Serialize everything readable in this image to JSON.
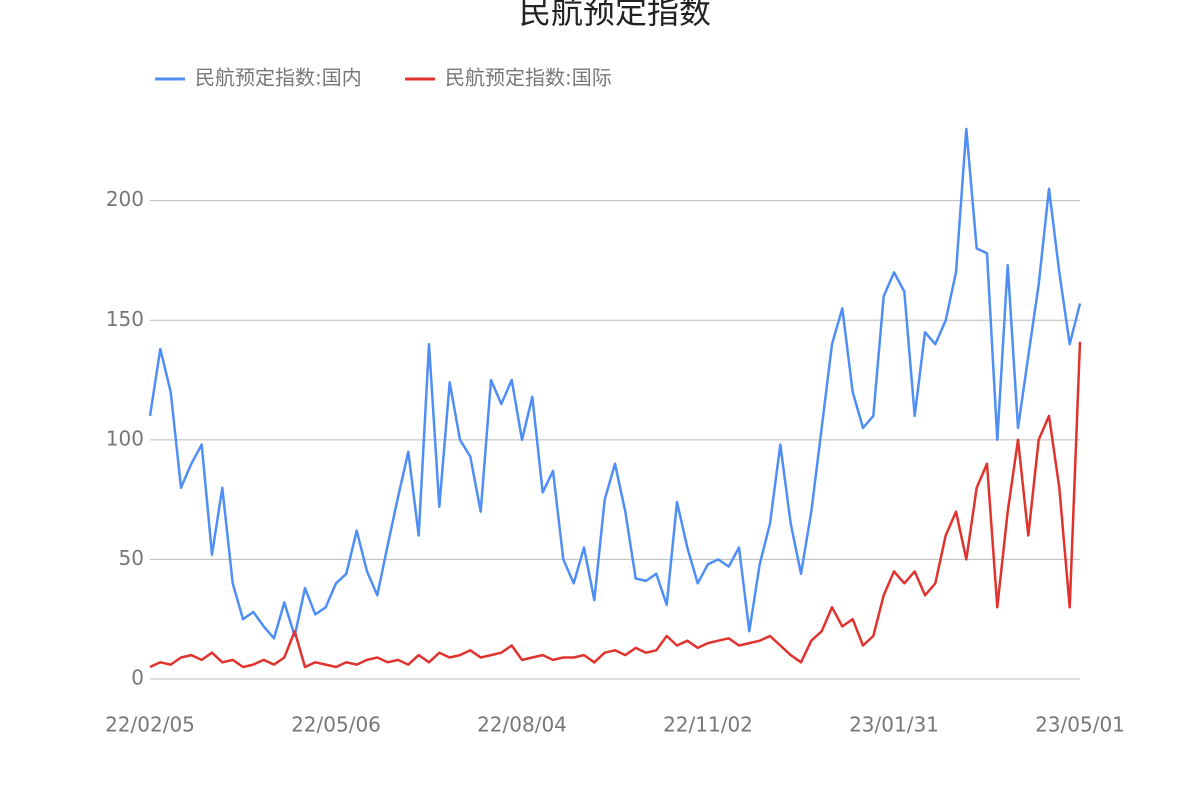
{
  "chart_data": {
    "type": "line",
    "title": "民航预定指数",
    "x": [
      "22/02/05",
      "22/02/10",
      "22/02/15",
      "22/02/20",
      "22/02/25",
      "22/03/02",
      "22/03/07",
      "22/03/12",
      "22/03/17",
      "22/03/22",
      "22/03/27",
      "22/04/01",
      "22/04/06",
      "22/04/11",
      "22/04/16",
      "22/04/21",
      "22/04/26",
      "22/05/01",
      "22/05/06",
      "22/05/11",
      "22/05/16",
      "22/05/21",
      "22/05/26",
      "22/05/31",
      "22/06/05",
      "22/06/10",
      "22/06/15",
      "22/06/20",
      "22/06/25",
      "22/06/30",
      "22/07/05",
      "22/07/10",
      "22/07/15",
      "22/07/20",
      "22/07/25",
      "22/07/30",
      "22/08/04",
      "22/08/09",
      "22/08/14",
      "22/08/19",
      "22/08/24",
      "22/08/29",
      "22/09/03",
      "22/09/08",
      "22/09/13",
      "22/09/18",
      "22/09/23",
      "22/09/28",
      "22/10/03",
      "22/10/08",
      "22/10/13",
      "22/10/18",
      "22/10/23",
      "22/10/28",
      "22/11/02",
      "22/11/07",
      "22/11/12",
      "22/11/17",
      "22/11/22",
      "22/11/27",
      "22/12/02",
      "22/12/07",
      "22/12/12",
      "22/12/17",
      "22/12/22",
      "22/12/27",
      "23/01/01",
      "23/01/06",
      "23/01/11",
      "23/01/16",
      "23/01/21",
      "23/01/26",
      "23/01/31",
      "23/02/05",
      "23/02/10",
      "23/02/15",
      "23/02/20",
      "23/02/25",
      "23/03/02",
      "23/03/07",
      "23/03/12",
      "23/03/17",
      "23/03/22",
      "23/03/27",
      "23/04/01",
      "23/04/06",
      "23/04/11",
      "23/04/16",
      "23/04/21",
      "23/04/26",
      "23/05/01"
    ],
    "series": [
      {
        "name": "民航预定指数:国内",
        "color": "#4f8ef5",
        "values": [
          110,
          138,
          120,
          80,
          90,
          98,
          52,
          80,
          40,
          25,
          28,
          22,
          17,
          32,
          18,
          38,
          27,
          30,
          40,
          44,
          62,
          45,
          35,
          56,
          76,
          95,
          60,
          140,
          72,
          124,
          100,
          93,
          70,
          125,
          115,
          125,
          100,
          118,
          78,
          87,
          50,
          40,
          55,
          33,
          75,
          90,
          70,
          42,
          41,
          44,
          31,
          74,
          55,
          40,
          48,
          50,
          47,
          55,
          20,
          48,
          65,
          98,
          65,
          44,
          70,
          105,
          140,
          155,
          120,
          105,
          110,
          160,
          170,
          162,
          110,
          145,
          140,
          150,
          170,
          230,
          180,
          178,
          100,
          173,
          105,
          135,
          165,
          205,
          170,
          140,
          157
        ]
      },
      {
        "name": "民航预定指数:国际",
        "color": "#e0332e",
        "values": [
          5,
          7,
          6,
          9,
          10,
          8,
          11,
          7,
          8,
          5,
          6,
          8,
          6,
          9,
          20,
          5,
          7,
          6,
          5,
          7,
          6,
          8,
          9,
          7,
          8,
          6,
          10,
          7,
          11,
          9,
          10,
          12,
          9,
          10,
          11,
          14,
          8,
          9,
          10,
          8,
          9,
          9,
          10,
          7,
          11,
          12,
          10,
          13,
          11,
          12,
          18,
          14,
          16,
          13,
          15,
          16,
          17,
          14,
          15,
          16,
          18,
          14,
          10,
          7,
          16,
          20,
          30,
          22,
          25,
          14,
          18,
          35,
          45,
          40,
          45,
          35,
          40,
          60,
          70,
          50,
          80,
          90,
          30,
          70,
          100,
          60,
          100,
          110,
          80,
          30,
          141
        ]
      }
    ],
    "xticks": [
      "22/02/05",
      "22/05/06",
      "22/08/04",
      "22/11/02",
      "23/01/31",
      "23/05/01"
    ],
    "ylim": [
      0,
      240
    ],
    "yticks": [
      0,
      50,
      100,
      150,
      200
    ],
    "grid": true,
    "legend": "top-left"
  }
}
